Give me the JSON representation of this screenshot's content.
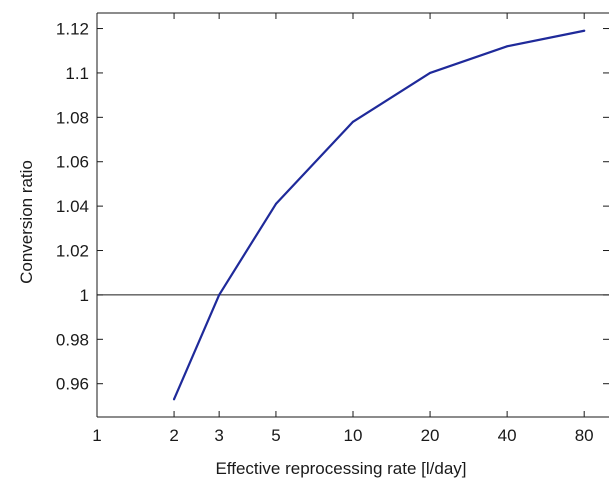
{
  "chart_data": {
    "type": "line",
    "title": "",
    "xlabel": "Effective reprocessing rate [l/day]",
    "ylabel": "Conversion ratio",
    "x_scale": "log",
    "xlim": [
      1,
      100
    ],
    "ylim": [
      0.945,
      1.127
    ],
    "x_ticks": [
      1,
      2,
      3,
      5,
      10,
      20,
      40,
      80
    ],
    "x_tick_labels": [
      "1",
      "2",
      "3",
      "5",
      "10",
      "20",
      "40",
      "80"
    ],
    "y_ticks": [
      0.96,
      0.98,
      1,
      1.02,
      1.04,
      1.06,
      1.08,
      1.1,
      1.12
    ],
    "y_tick_labels": [
      "0.96",
      "0.98",
      "1",
      "1.02",
      "1.04",
      "1.06",
      "1.08",
      "1.1",
      "1.12"
    ],
    "grid": false,
    "reference_line": {
      "y": 1
    },
    "series": [
      {
        "color": "#1f2a9a",
        "x": [
          2,
          3,
          5,
          10,
          20,
          40,
          80
        ],
        "y": [
          0.953,
          1.0,
          1.041,
          1.078,
          1.1,
          1.112,
          1.119
        ]
      }
    ]
  }
}
